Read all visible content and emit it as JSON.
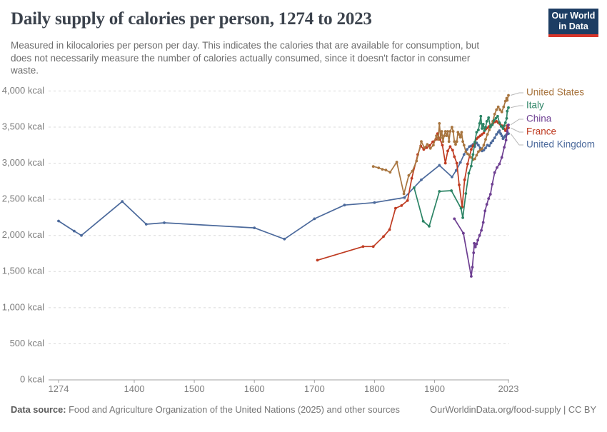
{
  "header": {
    "title": "Daily supply of calories per person, 1274 to 2023",
    "subtitle_lines": [
      "Measured in kilocalories per person per day. This indicates the calories that are available for consumption, but",
      "does not necessarily measure the number of calories actually consumed, since it doesn't factor in consumer",
      "waste."
    ],
    "logo": {
      "line1": "Our World",
      "line2": "in Data"
    }
  },
  "footer": {
    "source_label": "Data source:",
    "source_text": " Food and Agriculture Organization of the United Nations (2025) and other sources",
    "link_text": "OurWorldinData.org/food-supply | CC BY"
  },
  "chart_data": {
    "type": "line",
    "title": "Daily supply of calories per person, 1274 to 2023",
    "xlabel": "",
    "ylabel": "",
    "xlim": [
      1274,
      2023
    ],
    "ylim": [
      0,
      4000
    ],
    "grid": "horizontal-dashed",
    "legend_position": "right",
    "x_ticks": [
      {
        "value": 1274,
        "label": "1274"
      },
      {
        "value": 1400,
        "label": "1400"
      },
      {
        "value": 1500,
        "label": "1500"
      },
      {
        "value": 1600,
        "label": "1600"
      },
      {
        "value": 1700,
        "label": "1700"
      },
      {
        "value": 1800,
        "label": "1800"
      },
      {
        "value": 1900,
        "label": "1900"
      },
      {
        "value": 2023,
        "label": "2023"
      }
    ],
    "y_ticks": [
      {
        "value": 0,
        "label": "0 kcal"
      },
      {
        "value": 500,
        "label": "500 kcal"
      },
      {
        "value": 1000,
        "label": "1,000 kcal"
      },
      {
        "value": 1500,
        "label": "1,500 kcal"
      },
      {
        "value": 2000,
        "label": "2,000 kcal"
      },
      {
        "value": 2500,
        "label": "2,500 kcal"
      },
      {
        "value": 3000,
        "label": "3,000 kcal"
      },
      {
        "value": 3500,
        "label": "3,500 kcal"
      },
      {
        "value": 4000,
        "label": "4,000 kcal"
      }
    ],
    "series": [
      {
        "name": "United States",
        "color": "#A8753F",
        "label_y": 130,
        "points": [
          [
            1798,
            2955
          ],
          [
            1807,
            2935
          ],
          [
            1813,
            2915
          ],
          [
            1819,
            2905
          ],
          [
            1826,
            2875
          ],
          [
            1837,
            3015
          ],
          [
            1849,
            2575
          ],
          [
            1857,
            2830
          ],
          [
            1863,
            2890
          ],
          [
            1870,
            3030
          ],
          [
            1878,
            3300
          ],
          [
            1883,
            3215
          ],
          [
            1888,
            3260
          ],
          [
            1893,
            3205
          ],
          [
            1898,
            3250
          ],
          [
            1903,
            3380
          ],
          [
            1906,
            3330
          ],
          [
            1908,
            3550
          ],
          [
            1910,
            3350
          ],
          [
            1912,
            3440
          ],
          [
            1914,
            3300
          ],
          [
            1916,
            3380
          ],
          [
            1918,
            3440
          ],
          [
            1920,
            3380
          ],
          [
            1922,
            3440
          ],
          [
            1924,
            3300
          ],
          [
            1926,
            3440
          ],
          [
            1929,
            3500
          ],
          [
            1931,
            3440
          ],
          [
            1933,
            3300
          ],
          [
            1935,
            3260
          ],
          [
            1937,
            3300
          ],
          [
            1939,
            3430
          ],
          [
            1941,
            3400
          ],
          [
            1943,
            3360
          ],
          [
            1945,
            3430
          ],
          [
            1947,
            3300
          ],
          [
            1949,
            3250
          ],
          [
            1952,
            3160
          ],
          [
            1955,
            3130
          ],
          [
            1958,
            3110
          ],
          [
            1961,
            3080
          ],
          [
            1964,
            3050
          ],
          [
            1967,
            3060
          ],
          [
            1970,
            3110
          ],
          [
            1973,
            3160
          ],
          [
            1976,
            3180
          ],
          [
            1979,
            3200
          ],
          [
            1982,
            3250
          ],
          [
            1985,
            3330
          ],
          [
            1988,
            3400
          ],
          [
            1991,
            3460
          ],
          [
            1994,
            3520
          ],
          [
            1997,
            3580
          ],
          [
            2000,
            3680
          ],
          [
            2003,
            3740
          ],
          [
            2006,
            3780
          ],
          [
            2009,
            3740
          ],
          [
            2012,
            3710
          ],
          [
            2015,
            3780
          ],
          [
            2018,
            3860
          ],
          [
            2020,
            3900
          ],
          [
            2021,
            3870
          ],
          [
            2023,
            3940
          ]
        ]
      },
      {
        "name": "Italy",
        "color": "#2C8465",
        "label_y": 148,
        "points": [
          [
            1866,
            2660
          ],
          [
            1881,
            2197
          ],
          [
            1891,
            2127
          ],
          [
            1908,
            2610
          ],
          [
            1928,
            2620
          ],
          [
            1944,
            2375
          ],
          [
            1947,
            2245
          ],
          [
            1952,
            2580
          ],
          [
            1957,
            2860
          ],
          [
            1961,
            2960
          ],
          [
            1964,
            3120
          ],
          [
            1967,
            3290
          ],
          [
            1970,
            3430
          ],
          [
            1973,
            3460
          ],
          [
            1975,
            3550
          ],
          [
            1977,
            3650
          ],
          [
            1979,
            3480
          ],
          [
            1981,
            3540
          ],
          [
            1983,
            3450
          ],
          [
            1985,
            3500
          ],
          [
            1987,
            3580
          ],
          [
            1990,
            3630
          ],
          [
            1993,
            3500
          ],
          [
            1996,
            3530
          ],
          [
            1999,
            3590
          ],
          [
            2002,
            3620
          ],
          [
            2005,
            3650
          ],
          [
            2008,
            3560
          ],
          [
            2011,
            3510
          ],
          [
            2014,
            3480
          ],
          [
            2016,
            3520
          ],
          [
            2018,
            3560
          ],
          [
            2020,
            3620
          ],
          [
            2021,
            3720
          ],
          [
            2023,
            3770
          ]
        ]
      },
      {
        "name": "China",
        "color": "#6D3E91",
        "label_y": 167,
        "points": [
          [
            1933,
            2230
          ],
          [
            1948,
            2030
          ],
          [
            1961,
            1434
          ],
          [
            1963,
            1560
          ],
          [
            1965,
            1760
          ],
          [
            1966,
            1890
          ],
          [
            1968,
            1840
          ],
          [
            1970,
            1880
          ],
          [
            1972,
            1935
          ],
          [
            1975,
            2000
          ],
          [
            1978,
            2070
          ],
          [
            1981,
            2180
          ],
          [
            1984,
            2340
          ],
          [
            1987,
            2430
          ],
          [
            1990,
            2510
          ],
          [
            1993,
            2570
          ],
          [
            1996,
            2710
          ],
          [
            2000,
            2870
          ],
          [
            2004,
            2940
          ],
          [
            2008,
            2990
          ],
          [
            2012,
            3080
          ],
          [
            2016,
            3220
          ],
          [
            2019,
            3320
          ],
          [
            2021,
            3440
          ],
          [
            2023,
            3530
          ]
        ]
      },
      {
        "name": "France",
        "color": "#BF3B21",
        "label_y": 185,
        "points": [
          [
            1705,
            1657
          ],
          [
            1781,
            1846
          ],
          [
            1798,
            1846
          ],
          [
            1815,
            1984
          ],
          [
            1825,
            2080
          ],
          [
            1835,
            2377
          ],
          [
            1845,
            2413
          ],
          [
            1855,
            2482
          ],
          [
            1862,
            2790
          ],
          [
            1872,
            3120
          ],
          [
            1877,
            3240
          ],
          [
            1882,
            3190
          ],
          [
            1887,
            3215
          ],
          [
            1892,
            3245
          ],
          [
            1897,
            3295
          ],
          [
            1902,
            3330
          ],
          [
            1905,
            3410
          ],
          [
            1909,
            3330
          ],
          [
            1913,
            3250
          ],
          [
            1918,
            3000
          ],
          [
            1922,
            3170
          ],
          [
            1926,
            3230
          ],
          [
            1930,
            3180
          ],
          [
            1933,
            3090
          ],
          [
            1937,
            3000
          ],
          [
            1941,
            2700
          ],
          [
            1946,
            2394
          ],
          [
            1950,
            2770
          ],
          [
            1955,
            2990
          ],
          [
            1961,
            3190
          ],
          [
            1964,
            3240
          ],
          [
            1967,
            3280
          ],
          [
            1970,
            3340
          ],
          [
            1973,
            3360
          ],
          [
            1976,
            3380
          ],
          [
            1979,
            3400
          ],
          [
            1982,
            3420
          ],
          [
            1985,
            3470
          ],
          [
            1988,
            3490
          ],
          [
            1991,
            3510
          ],
          [
            1994,
            3530
          ],
          [
            1997,
            3550
          ],
          [
            2000,
            3570
          ],
          [
            2003,
            3580
          ],
          [
            2006,
            3560
          ],
          [
            2009,
            3540
          ],
          [
            2012,
            3520
          ],
          [
            2015,
            3480
          ],
          [
            2018,
            3450
          ],
          [
            2020,
            3480
          ],
          [
            2021,
            3520
          ],
          [
            2023,
            3490
          ]
        ]
      },
      {
        "name": "United Kingdom",
        "color": "#4C6A9C",
        "label_y": 203,
        "points": [
          [
            1274,
            2200
          ],
          [
            1300,
            2060
          ],
          [
            1312,
            2000
          ],
          [
            1380,
            2470
          ],
          [
            1420,
            2155
          ],
          [
            1450,
            2175
          ],
          [
            1600,
            2105
          ],
          [
            1650,
            1950
          ],
          [
            1700,
            2230
          ],
          [
            1750,
            2420
          ],
          [
            1800,
            2455
          ],
          [
            1850,
            2525
          ],
          [
            1878,
            2770
          ],
          [
            1908,
            2970
          ],
          [
            1929,
            2810
          ],
          [
            1936,
            2900
          ],
          [
            1943,
            3010
          ],
          [
            1949,
            3120
          ],
          [
            1954,
            3190
          ],
          [
            1958,
            3230
          ],
          [
            1961,
            3240
          ],
          [
            1964,
            3260
          ],
          [
            1967,
            3230
          ],
          [
            1970,
            3280
          ],
          [
            1973,
            3250
          ],
          [
            1976,
            3210
          ],
          [
            1979,
            3170
          ],
          [
            1982,
            3180
          ],
          [
            1985,
            3210
          ],
          [
            1988,
            3250
          ],
          [
            1991,
            3240
          ],
          [
            1994,
            3280
          ],
          [
            1997,
            3310
          ],
          [
            2000,
            3350
          ],
          [
            2003,
            3400
          ],
          [
            2006,
            3430
          ],
          [
            2008,
            3450
          ],
          [
            2010,
            3410
          ],
          [
            2012,
            3380
          ],
          [
            2014,
            3340
          ],
          [
            2016,
            3360
          ],
          [
            2018,
            3380
          ],
          [
            2020,
            3400
          ],
          [
            2023,
            3410
          ]
        ]
      }
    ]
  }
}
